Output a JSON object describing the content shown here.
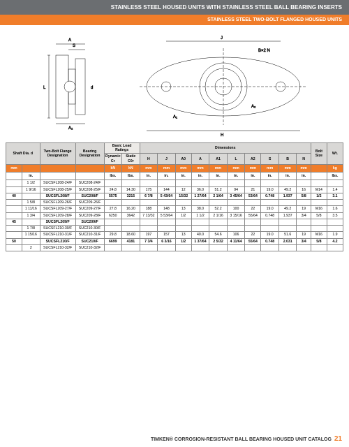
{
  "header": {
    "title": "STAINLESS STEEL HOUSED UNITS WITH STAINLESS STEEL BALL BEARING INSERTS",
    "subtitle": "STAINLESS STEEL TWO-BOLT FLANGED HOUSED UNITS"
  },
  "colors": {
    "header_bg": "#6b6e71",
    "subheader_bg": "#f07d2a",
    "th_grey": "#d9d8d6",
    "th_lightgrey": "#eceae7",
    "unit_row_bg": "#f07d2a"
  },
  "table": {
    "group_headers": {
      "shaft": "Shaft Dia.\nd",
      "flange": "Two-Bolt Flange Designation",
      "bearing": "Bearing Designation",
      "load": "Basic Load Ratings",
      "load_dyn": "Dynamic Cr",
      "load_stat": "Static C0r",
      "dims": "Dimensions",
      "bolt": "Bolt Size",
      "wt": "Wt."
    },
    "dim_cols": [
      "H",
      "J",
      "A0",
      "A",
      "A1",
      "L",
      "A2",
      "S",
      "B",
      "N"
    ],
    "units": {
      "mm": "mm",
      "in": "in.",
      "kn": "kN",
      "lbs": "lbs.",
      "kg": "kg"
    },
    "rows": [
      {
        "d_in": "1 1/2",
        "flange": "SUCSFL208-24/F",
        "bearing": "SUC208-24/F"
      },
      {
        "d_in": "1 9/16",
        "flange": "SUCSFL208-25/F",
        "bearing": "SUC208-25/F",
        "cr": "24.8",
        "cor": "14.30",
        "H": "175",
        "J": "144",
        "A0": "12",
        "A": "36.0",
        "A1": "51.2",
        "L": "94",
        "A2": "21",
        "S": "19.0",
        "B": "49.2",
        "N": "16",
        "bolt": "M14",
        "wt": "1.4"
      },
      {
        "hl": true,
        "d_mm": "40",
        "flange": "SUCSFL208/F",
        "bearing": "SUC208/F",
        "cr": "5575",
        "cor": "3215",
        "H": "6 7/8",
        "J": "5 43/64",
        "A0": "15/32",
        "A": "1 27/64",
        "A1": "2 1/64",
        "L": "3 45/64",
        "A2": "53/64",
        "S": "0.748",
        "B": "1.937",
        "N": "5/8",
        "bolt": "1/2",
        "wt": "3.1"
      },
      {
        "d_in": "1 5/8",
        "flange": "SUCSFL209-26/F",
        "bearing": "SUC209-26/F"
      },
      {
        "d_in": "1 11/16",
        "flange": "SUCSFL209-27/F",
        "bearing": "SUC209-27/F",
        "cr": "27.8",
        "cor": "16.20",
        "H": "188",
        "J": "148",
        "A0": "13",
        "A": "38.0",
        "A1": "52.2",
        "L": "100",
        "A2": "22",
        "S": "19.0",
        "B": "49.2",
        "N": "19",
        "bolt": "M16",
        "wt": "1.6"
      },
      {
        "d_in": "1 3/4",
        "flange": "SUCSFL209-28/F",
        "bearing": "SUC209-28/F",
        "cr": "6250",
        "cor": "3642",
        "H": "7 13/32",
        "J": "5 53/64",
        "A0": "1/2",
        "A": "1 1/2",
        "A1": "2 1/16",
        "L": "3 15/16",
        "A2": "55/64",
        "S": "0.748",
        "B": "1.937",
        "N": "3/4",
        "bolt": "5/8",
        "wt": "3.5"
      },
      {
        "hl": true,
        "d_mm": "45",
        "flange": "SUCSFL209/F",
        "bearing": "SUC209/F"
      },
      {
        "d_in": "1 7/8",
        "flange": "SUCSFL210-30/F",
        "bearing": "SUC210-30/F"
      },
      {
        "d_in": "1 15/16",
        "flange": "SUCSFL210-31/F",
        "bearing": "SUC210-31/F",
        "cr": "29.8",
        "cor": "18.60",
        "H": "197",
        "J": "157",
        "A0": "13",
        "A": "40.0",
        "A1": "54.6",
        "L": "106",
        "A2": "22",
        "S": "19.0",
        "B": "51.6",
        "N": "19",
        "bolt": "M16",
        "wt": "1.9"
      },
      {
        "hl": true,
        "d_mm": "50",
        "flange": "SUCSFL210/F",
        "bearing": "SUC210/F",
        "cr": "6699",
        "cor": "4181",
        "H": "7 3/4",
        "J": "6 3/16",
        "A0": "1/2",
        "A": "1 37/64",
        "A1": "2 5/32",
        "L": "4 11/64",
        "A2": "55/64",
        "S": "0.748",
        "B": "2.031",
        "N": "3/4",
        "bolt": "5/8",
        "wt": "4.2"
      },
      {
        "d_in": "2",
        "flange": "SUCSFL210-32/F",
        "bearing": "SUC210-32/F"
      }
    ]
  },
  "footer": {
    "text": "TIMKEN® CORROSION-RESISTANT BALL BEARING HOUSED UNIT CATALOG",
    "page": "21"
  }
}
